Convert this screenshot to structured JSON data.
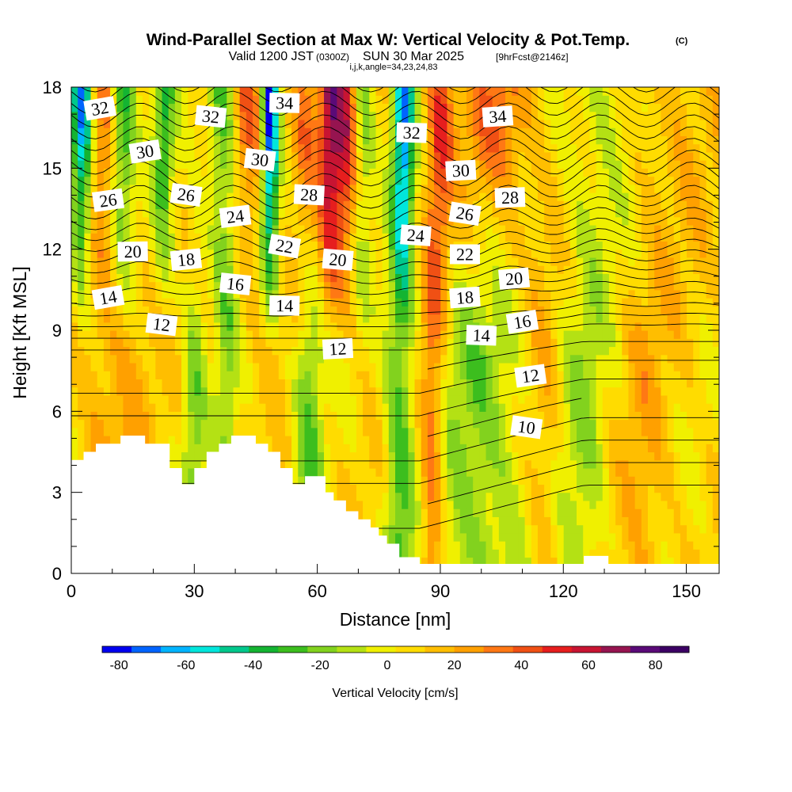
{
  "title": "Wind-Parallel Section at Max W: Vertical Velocity & Pot.Temp.",
  "copyright_mark": "(C)",
  "subtitle": {
    "valid": "Valid 1200 JST",
    "utc": "(0300Z)",
    "date": "SUN 30 Mar 2025",
    "fcst": "[9hrFcst@2146z]",
    "params": "i,j,k,angle=34,23,24,83"
  },
  "chart_data": {
    "type": "heatmap",
    "xlabel": "Distance [nm]",
    "ylabel": "Height [Kft MSL]",
    "xlim": [
      0,
      158
    ],
    "ylim": [
      0,
      18
    ],
    "x_ticks": [
      0,
      30,
      60,
      90,
      120,
      150
    ],
    "y_ticks": [
      0,
      3,
      6,
      9,
      12,
      15,
      18
    ],
    "colorbar": {
      "label": "Vertical Velocity [cm/s]",
      "tick_values": [
        -80,
        -60,
        -40,
        -20,
        0,
        20,
        40,
        60,
        80
      ],
      "bounds": [
        -85,
        90
      ],
      "colors": [
        "#0000f0",
        "#0064ff",
        "#00b4ff",
        "#00e6dc",
        "#00c88c",
        "#14b432",
        "#3cbe1e",
        "#82d21e",
        "#b4e114",
        "#f0f000",
        "#ffdc00",
        "#ffbe00",
        "#ffa000",
        "#ff7814",
        "#f05014",
        "#e61e1e",
        "#c81432",
        "#961450",
        "#5a0a78",
        "#3c0064"
      ]
    },
    "contour_variable": "Pot.Temp.",
    "contour_labels": [
      {
        "text": "32",
        "x": 7,
        "y": 17.2
      },
      {
        "text": "32",
        "x": 34,
        "y": 16.9
      },
      {
        "text": "34",
        "x": 52,
        "y": 17.4
      },
      {
        "text": "34",
        "x": 104,
        "y": 16.9
      },
      {
        "text": "30",
        "x": 18,
        "y": 15.6
      },
      {
        "text": "30",
        "x": 46,
        "y": 15.3
      },
      {
        "text": "32",
        "x": 83,
        "y": 16.3
      },
      {
        "text": "30",
        "x": 95,
        "y": 14.9
      },
      {
        "text": "26",
        "x": 9,
        "y": 13.8
      },
      {
        "text": "26",
        "x": 28,
        "y": 14.0
      },
      {
        "text": "28",
        "x": 58,
        "y": 14.0
      },
      {
        "text": "28",
        "x": 107,
        "y": 13.9
      },
      {
        "text": "24",
        "x": 40,
        "y": 13.2
      },
      {
        "text": "26",
        "x": 96,
        "y": 13.3
      },
      {
        "text": "24",
        "x": 84,
        "y": 12.5
      },
      {
        "text": "20",
        "x": 15,
        "y": 11.9
      },
      {
        "text": "18",
        "x": 28,
        "y": 11.6
      },
      {
        "text": "22",
        "x": 52,
        "y": 12.1
      },
      {
        "text": "20",
        "x": 65,
        "y": 11.6
      },
      {
        "text": "22",
        "x": 96,
        "y": 11.8
      },
      {
        "text": "20",
        "x": 108,
        "y": 10.9
      },
      {
        "text": "14",
        "x": 9,
        "y": 10.2
      },
      {
        "text": "16",
        "x": 40,
        "y": 10.7
      },
      {
        "text": "14",
        "x": 52,
        "y": 9.9
      },
      {
        "text": "18",
        "x": 96,
        "y": 10.2
      },
      {
        "text": "16",
        "x": 110,
        "y": 9.3
      },
      {
        "text": "12",
        "x": 22,
        "y": 9.2
      },
      {
        "text": "14",
        "x": 100,
        "y": 8.8
      },
      {
        "text": "12",
        "x": 65,
        "y": 8.3
      },
      {
        "text": "12",
        "x": 112,
        "y": 7.3
      },
      {
        "text": "10",
        "x": 111,
        "y": 5.4
      }
    ]
  }
}
